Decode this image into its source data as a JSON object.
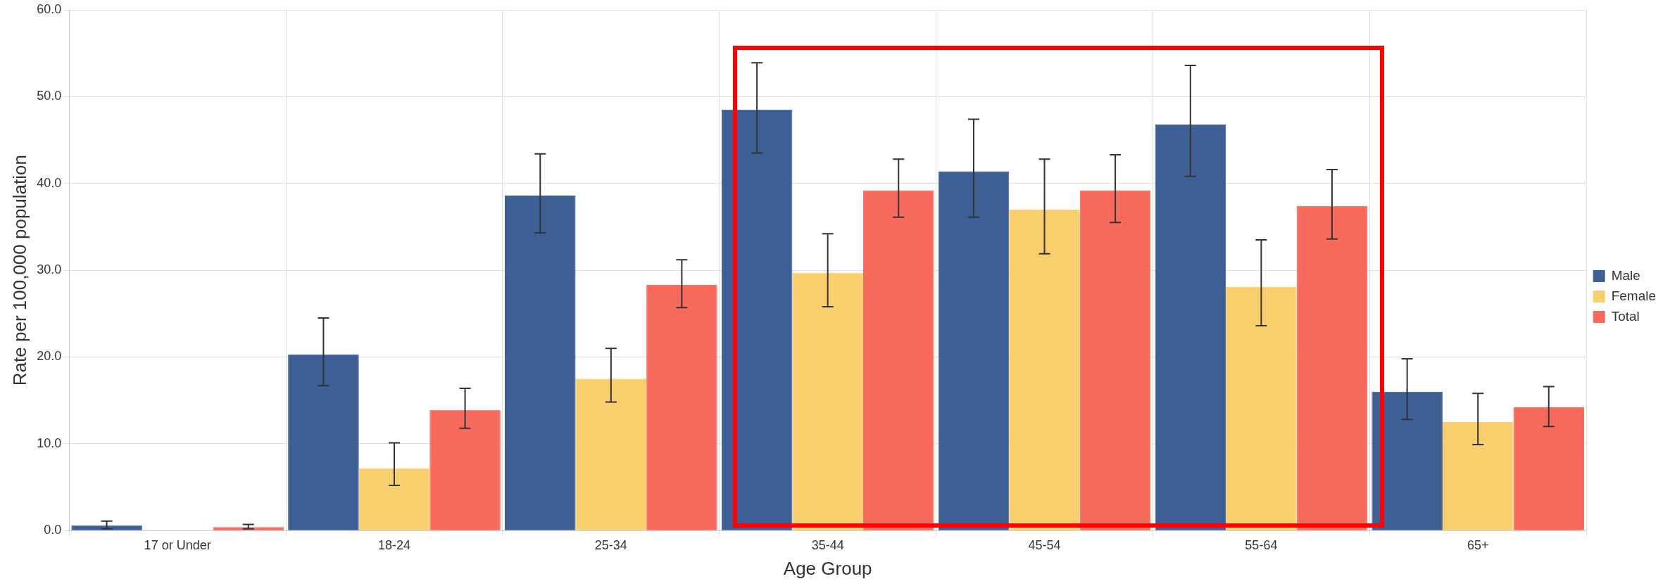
{
  "chart_data": {
    "type": "bar",
    "xlabel": "Age Group",
    "ylabel": "Rate per 100,000 population",
    "categories": [
      "17 or Under",
      "18-24",
      "25-34",
      "35-44",
      "45-54",
      "55-64",
      "65+"
    ],
    "series": [
      {
        "name": "Male",
        "color": "#3d5f93",
        "values": [
          0.6,
          20.3,
          38.6,
          48.5,
          41.4,
          46.8,
          16.0
        ],
        "errors": [
          [
            0.2,
            1.1
          ],
          [
            16.7,
            24.5
          ],
          [
            34.3,
            43.4
          ],
          [
            43.5,
            53.9
          ],
          [
            36.1,
            47.4
          ],
          [
            40.8,
            53.6
          ],
          [
            12.8,
            19.8
          ]
        ]
      },
      {
        "name": "Female",
        "color": "#f9cf6e",
        "values": [
          0,
          7.2,
          17.5,
          29.7,
          37.0,
          28.1,
          12.5
        ],
        "errors": [
          null,
          [
            5.2,
            10.1
          ],
          [
            14.8,
            21.0
          ],
          [
            25.8,
            34.2
          ],
          [
            31.9,
            42.8
          ],
          [
            23.6,
            33.5
          ],
          [
            9.9,
            15.8
          ]
        ]
      },
      {
        "name": "Total",
        "color": "#f76a5c",
        "values": [
          0.4,
          13.9,
          28.3,
          39.2,
          39.2,
          37.4,
          14.2
        ],
        "errors": [
          [
            0.2,
            0.7
          ],
          [
            11.8,
            16.4
          ],
          [
            25.7,
            31.2
          ],
          [
            36.1,
            42.8
          ],
          [
            35.5,
            43.3
          ],
          [
            33.6,
            41.6
          ],
          [
            12.0,
            16.6
          ]
        ]
      }
    ],
    "ylim": [
      0,
      60
    ],
    "yticks": [
      {
        "value": 0,
        "label": "0.0"
      },
      {
        "value": 10,
        "label": "10.0"
      },
      {
        "value": 20,
        "label": "20.0"
      },
      {
        "value": 30,
        "label": "30.0"
      },
      {
        "value": 40,
        "label": "40.0"
      },
      {
        "value": 50,
        "label": "50.0"
      },
      {
        "value": 60,
        "label": "60.0"
      }
    ],
    "grid": true,
    "legend": "right"
  }
}
